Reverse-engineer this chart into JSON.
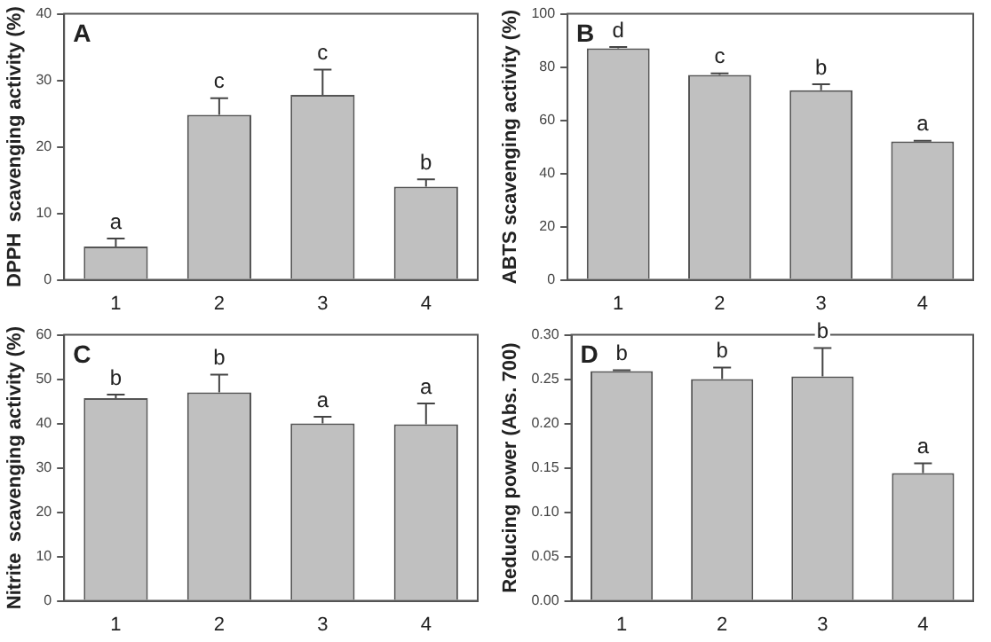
{
  "chart_data": [
    {
      "type": "bar",
      "title": "A",
      "ylabel": "DPPH  scavenging activity (%)",
      "categories": [
        "1",
        "2",
        "3",
        "4"
      ],
      "values": [
        5,
        24.8,
        27.8,
        14
      ],
      "errors": [
        [
          5,
          6.2
        ],
        [
          24.8,
          27.3
        ],
        [
          27.8,
          31.6
        ],
        [
          14,
          15.1
        ]
      ],
      "color": "#c0c0c0",
      "ylim": [
        0,
        40
      ],
      "yticks": [
        0,
        10,
        20,
        30,
        40
      ],
      "annotations": [
        {
          "text": "a",
          "x": "1",
          "y": 6.2
        },
        {
          "text": "c",
          "x": "2",
          "y": 27.3
        },
        {
          "text": "c",
          "x": "3",
          "y": 31.6
        },
        {
          "text": "b",
          "x": "4",
          "y": 15.1
        }
      ]
    },
    {
      "type": "bar",
      "title": "B",
      "ylabel": "ABTS scavenging activity (%)",
      "categories": [
        "1",
        "2",
        "3",
        "4"
      ],
      "values": [
        87,
        77,
        71.3,
        52
      ],
      "errors": [
        [
          87,
          87.5
        ],
        [
          77,
          77.6
        ],
        [
          71.3,
          73.5
        ],
        [
          52,
          52.3
        ]
      ],
      "color": "#c0c0c0",
      "ylim": [
        0,
        100
      ],
      "yticks": [
        0,
        20,
        40,
        60,
        80,
        100
      ],
      "annotations": [
        {
          "text": "d",
          "x": "1",
          "y": 87.5
        },
        {
          "text": "c",
          "x": "2",
          "y": 77.6
        },
        {
          "text": "b",
          "x": "3",
          "y": 73.5
        },
        {
          "text": "a",
          "x": "4",
          "y": 52.3
        }
      ]
    },
    {
      "type": "bar",
      "title": "C",
      "ylabel": "Nitrite  scavenging activity (%)",
      "categories": [
        "1",
        "2",
        "3",
        "4"
      ],
      "values": [
        45.7,
        47,
        40,
        39.8
      ],
      "errors": [
        [
          45.7,
          46.5
        ],
        [
          47,
          51
        ],
        [
          40,
          41.5
        ],
        [
          39.8,
          44.5
        ]
      ],
      "color": "#c0c0c0",
      "ylim": [
        0,
        60
      ],
      "yticks": [
        0,
        10,
        20,
        30,
        40,
        50,
        60
      ],
      "annotations": [
        {
          "text": "b",
          "x": "1",
          "y": 46.5
        },
        {
          "text": "b",
          "x": "2",
          "y": 51
        },
        {
          "text": "a",
          "x": "3",
          "y": 41.5
        },
        {
          "text": "a",
          "x": "4",
          "y": 44.5
        }
      ]
    },
    {
      "type": "bar",
      "title": "D",
      "ylabel": "Reducing power (Abs. 700)",
      "categories": [
        "1",
        "2",
        "3",
        "4"
      ],
      "values": [
        0.259,
        0.25,
        0.253,
        0.144
      ],
      "errors": [
        [
          0.259,
          0.26
        ],
        [
          0.25,
          0.263
        ],
        [
          0.253,
          0.285
        ],
        [
          0.144,
          0.155
        ]
      ],
      "color": "#c0c0c0",
      "ylim": [
        0,
        0.3
      ],
      "yticks": [
        {
          "value": 0,
          "label": "0.00"
        },
        {
          "value": 0.05,
          "label": "0.05"
        },
        {
          "value": 0.1,
          "label": "0.10"
        },
        {
          "value": 0.15,
          "label": "0.15"
        },
        {
          "value": 0.2,
          "label": "0.20"
        },
        {
          "value": 0.25,
          "label": "0.25"
        },
        {
          "value": 0.3,
          "label": "0.30"
        }
      ],
      "annotations": [
        {
          "text": "b",
          "x": "1",
          "y": 0.26
        },
        {
          "text": "b",
          "x": "2",
          "y": 0.263
        },
        {
          "text": "b",
          "x": "3",
          "y": 0.285
        },
        {
          "text": "a",
          "x": "4",
          "y": 0.155
        }
      ]
    }
  ]
}
